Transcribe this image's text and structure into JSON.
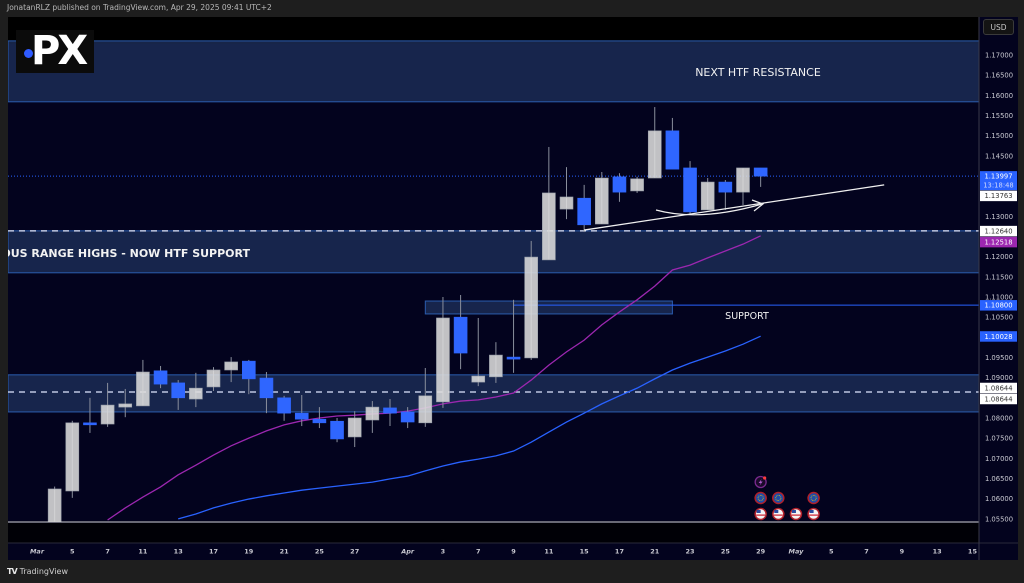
{
  "header": {
    "published": "JonatanRLZ published on TradingView.com, Apr 29, 2025 09:41 UTC+2"
  },
  "logo": {
    "text": "PX"
  },
  "currency_button": "USD",
  "footer": {
    "brand": "TradingView",
    "brand_icon": "tradingview-logo-icon"
  },
  "colors": {
    "background": "#03031e",
    "zone": "#1b2b55",
    "zone_border": "#2a5cae",
    "up_candle": "#dcdcdc",
    "down_candle": "#2f66ff",
    "ma_fast": "#9c27b0",
    "ma_slow": "#2962ff"
  },
  "chart_data": {
    "type": "candlestick",
    "title": "",
    "price_ticks": [
      "1.17000",
      "1.16500",
      "1.16000",
      "1.15500",
      "1.15000",
      "1.14500",
      "1.14000",
      "1.13500",
      "1.13000",
      "1.12500",
      "1.12000",
      "1.11500",
      "1.11000",
      "1.10500",
      "1.10000",
      "1.09500",
      "1.09000",
      "1.08500",
      "1.08000",
      "1.07500",
      "1.07000",
      "1.06500",
      "1.06000",
      "1.05500"
    ],
    "hidden_price_ticks": [
      "1.14000",
      "1.13500",
      "1.12500",
      "1.10000",
      "1.08500"
    ],
    "x_ticks": [
      {
        "label": "Mar",
        "date": "2025-03-03"
      },
      {
        "label": "5",
        "date": "2025-03-05"
      },
      {
        "label": "7",
        "date": "2025-03-07"
      },
      {
        "label": "11",
        "date": "2025-03-11"
      },
      {
        "label": "13",
        "date": "2025-03-13"
      },
      {
        "label": "17",
        "date": "2025-03-17"
      },
      {
        "label": "19",
        "date": "2025-03-19"
      },
      {
        "label": "21",
        "date": "2025-03-21"
      },
      {
        "label": "25",
        "date": "2025-03-25"
      },
      {
        "label": "27",
        "date": "2025-03-27"
      },
      {
        "label": "Apr",
        "date": "2025-04-01"
      },
      {
        "label": "3",
        "date": "2025-04-03"
      },
      {
        "label": "7",
        "date": "2025-04-07"
      },
      {
        "label": "9",
        "date": "2025-04-09"
      },
      {
        "label": "11",
        "date": "2025-04-11"
      },
      {
        "label": "15",
        "date": "2025-04-15"
      },
      {
        "label": "17",
        "date": "2025-04-17"
      },
      {
        "label": "21",
        "date": "2025-04-21"
      },
      {
        "label": "23",
        "date": "2025-04-23"
      },
      {
        "label": "25",
        "date": "2025-04-25"
      },
      {
        "label": "29",
        "date": "2025-04-29"
      },
      {
        "label": "May",
        "date": "2025-05-01"
      },
      {
        "label": "5",
        "date": "2025-05-05"
      },
      {
        "label": "7",
        "date": "2025-05-07"
      },
      {
        "label": "9",
        "date": "2025-05-09"
      },
      {
        "label": "13",
        "date": "2025-05-13"
      },
      {
        "label": "15",
        "date": "2025-05-15"
      }
    ],
    "candles": [
      [
        "2025-03-04",
        1.0485,
        1.063,
        1.047,
        1.0624
      ],
      [
        "2025-03-05",
        1.0619,
        1.0793,
        1.0602,
        1.0788
      ],
      [
        "2025-03-06",
        1.0788,
        1.085,
        1.0763,
        1.0784
      ],
      [
        "2025-03-07",
        1.0785,
        1.0887,
        1.0778,
        1.0832
      ],
      [
        "2025-03-10",
        1.0827,
        1.0872,
        1.0802,
        1.0835
      ],
      [
        "2025-03-11",
        1.083,
        1.0944,
        1.083,
        1.0914
      ],
      [
        "2025-03-12",
        1.0917,
        1.0929,
        1.0874,
        1.0884
      ],
      [
        "2025-03-13",
        1.0887,
        1.0894,
        1.082,
        1.085
      ],
      [
        "2025-03-14",
        1.0847,
        1.0912,
        1.0827,
        1.0874
      ],
      [
        "2025-03-17",
        1.0877,
        1.0926,
        1.0867,
        1.0919
      ],
      [
        "2025-03-18",
        1.0919,
        1.0951,
        1.0889,
        1.0939
      ],
      [
        "2025-03-19",
        1.0941,
        1.0944,
        1.0859,
        1.0897
      ],
      [
        "2025-03-20",
        1.0899,
        1.0914,
        1.0812,
        1.085
      ],
      [
        "2025-03-21",
        1.085,
        1.0855,
        1.0793,
        1.0812
      ],
      [
        "2025-03-24",
        1.0812,
        1.0857,
        1.078,
        1.0797
      ],
      [
        "2025-03-25",
        1.0797,
        1.0827,
        1.0775,
        1.0788
      ],
      [
        "2025-03-26",
        1.0792,
        1.08,
        1.074,
        1.0748
      ],
      [
        "2025-03-27",
        1.0753,
        1.0817,
        1.0728,
        1.08
      ],
      [
        "2025-03-28",
        1.0795,
        1.0842,
        1.0763,
        1.0827
      ],
      [
        "2025-03-31",
        1.0825,
        1.0847,
        1.078,
        1.0812
      ],
      [
        "2025-04-01",
        1.0815,
        1.0827,
        1.0775,
        1.079
      ],
      [
        "2025-04-02",
        1.0788,
        1.0924,
        1.0778,
        1.0855
      ],
      [
        "2025-04-03",
        1.084,
        1.11,
        1.0825,
        1.1048
      ],
      [
        "2025-04-04",
        1.105,
        1.1105,
        1.0921,
        1.0961
      ],
      [
        "2025-04-07",
        1.0889,
        1.1048,
        1.0879,
        1.0904
      ],
      [
        "2025-04-08",
        1.0902,
        1.0988,
        1.0887,
        1.0956
      ],
      [
        "2025-04-09",
        1.0951,
        1.1093,
        1.0912,
        1.0946
      ],
      [
        "2025-04-10",
        1.0949,
        1.1239,
        1.0944,
        1.1199
      ],
      [
        "2025-04-11",
        1.1192,
        1.1472,
        1.1192,
        1.1358
      ],
      [
        "2025-04-14",
        1.1318,
        1.1422,
        1.1293,
        1.1348
      ],
      [
        "2025-04-15",
        1.1345,
        1.1378,
        1.1261,
        1.1279
      ],
      [
        "2025-04-16",
        1.1281,
        1.141,
        1.1281,
        1.1395
      ],
      [
        "2025-04-17",
        1.1398,
        1.1407,
        1.1336,
        1.136
      ],
      [
        "2025-04-18",
        1.1363,
        1.1398,
        1.1358,
        1.1393
      ],
      [
        "2025-04-21",
        1.1395,
        1.1571,
        1.1395,
        1.1512
      ],
      [
        "2025-04-22",
        1.1512,
        1.1544,
        1.1417,
        1.1417
      ],
      [
        "2025-04-23",
        1.142,
        1.1437,
        1.1306,
        1.1311
      ],
      [
        "2025-04-24",
        1.1316,
        1.1395,
        1.1316,
        1.1385
      ],
      [
        "2025-04-25",
        1.1385,
        1.139,
        1.1316,
        1.136
      ],
      [
        "2025-04-28",
        1.136,
        1.142,
        1.1328,
        1.142
      ],
      [
        "2025-04-29",
        1.142,
        1.142,
        1.1373,
        1.13997
      ]
    ],
    "moving_averages": [
      {
        "color": "#9c27b0",
        "points": [
          [
            "2025-03-07",
            1.0547
          ],
          [
            "2025-03-10",
            1.0577
          ],
          [
            "2025-03-11",
            1.0604
          ],
          [
            "2025-03-12",
            1.0629
          ],
          [
            "2025-03-13",
            1.0659
          ],
          [
            "2025-03-14",
            1.0683
          ],
          [
            "2025-03-17",
            1.0708
          ],
          [
            "2025-03-18",
            1.0731
          ],
          [
            "2025-03-19",
            1.075
          ],
          [
            "2025-03-20",
            1.0768
          ],
          [
            "2025-03-21",
            1.0783
          ],
          [
            "2025-03-24",
            1.0793
          ],
          [
            "2025-03-25",
            1.08
          ],
          [
            "2025-03-26",
            1.0805
          ],
          [
            "2025-03-27",
            1.0807
          ],
          [
            "2025-03-28",
            1.081
          ],
          [
            "2025-03-31",
            1.0812
          ],
          [
            "2025-04-01",
            1.0817
          ],
          [
            "2025-04-02",
            1.0825
          ],
          [
            "2025-04-03",
            1.0835
          ],
          [
            "2025-04-04",
            1.0842
          ],
          [
            "2025-04-07",
            1.0845
          ],
          [
            "2025-04-08",
            1.0852
          ],
          [
            "2025-04-09",
            1.0862
          ],
          [
            "2025-04-10",
            1.0894
          ],
          [
            "2025-04-11",
            1.0931
          ],
          [
            "2025-04-14",
            1.0964
          ],
          [
            "2025-04-15",
            1.0993
          ],
          [
            "2025-04-16",
            1.1031
          ],
          [
            "2025-04-17",
            1.1063
          ],
          [
            "2025-04-18",
            1.1093
          ],
          [
            "2025-04-21",
            1.1127
          ],
          [
            "2025-04-22",
            1.1167
          ],
          [
            "2025-04-23",
            1.1179
          ],
          [
            "2025-04-24",
            1.1197
          ],
          [
            "2025-04-25",
            1.1214
          ],
          [
            "2025-04-28",
            1.1231
          ],
          [
            "2025-04-29",
            1.12518
          ]
        ]
      },
      {
        "color": "#2962ff",
        "points": [
          [
            "2025-03-13",
            1.055
          ],
          [
            "2025-03-14",
            1.0562
          ],
          [
            "2025-03-17",
            1.0577
          ],
          [
            "2025-03-18",
            1.0589
          ],
          [
            "2025-03-19",
            1.0599
          ],
          [
            "2025-03-20",
            1.0607
          ],
          [
            "2025-03-21",
            1.0614
          ],
          [
            "2025-03-24",
            1.0621
          ],
          [
            "2025-03-25",
            1.0626
          ],
          [
            "2025-03-26",
            1.0631
          ],
          [
            "2025-03-27",
            1.0636
          ],
          [
            "2025-03-28",
            1.0641
          ],
          [
            "2025-03-31",
            1.0649
          ],
          [
            "2025-04-01",
            1.0656
          ],
          [
            "2025-04-02",
            1.0669
          ],
          [
            "2025-04-03",
            1.0681
          ],
          [
            "2025-04-04",
            1.0691
          ],
          [
            "2025-04-07",
            1.0698
          ],
          [
            "2025-04-08",
            1.0706
          ],
          [
            "2025-04-09",
            1.0718
          ],
          [
            "2025-04-10",
            1.074
          ],
          [
            "2025-04-11",
            1.0765
          ],
          [
            "2025-04-14",
            1.079
          ],
          [
            "2025-04-15",
            1.0812
          ],
          [
            "2025-04-16",
            1.0835
          ],
          [
            "2025-04-17",
            1.0855
          ],
          [
            "2025-04-18",
            1.0874
          ],
          [
            "2025-04-21",
            1.0897
          ],
          [
            "2025-04-22",
            1.0919
          ],
          [
            "2025-04-23",
            1.0936
          ],
          [
            "2025-04-24",
            1.0951
          ],
          [
            "2025-04-25",
            1.0966
          ],
          [
            "2025-04-28",
            1.0983
          ],
          [
            "2025-04-29",
            1.10028
          ]
        ]
      }
    ],
    "zones": [
      {
        "label": "NEXT HTF RESISTANCE",
        "top": 1.1735,
        "bottom": 1.1584
      },
      {
        "label": "PREVIOUS RANGE HIGHS - NOW HTF SUPPORT",
        "top": 1.1264,
        "bottom": 1.116
      },
      {
        "label": "",
        "top": 1.0907,
        "bottom": 1.0815
      },
      {
        "label": "SUPPORT",
        "top": 1.109,
        "bottom": 1.1058,
        "from": "2025-04-02",
        "to": "2025-04-22"
      }
    ],
    "levels": [
      {
        "price": 1.1264,
        "style": "dashed"
      },
      {
        "price": 1.08644,
        "style": "dashed"
      },
      {
        "price": 1.108,
        "style": "solid",
        "from": "2025-04-09"
      },
      {
        "price": 1.13997,
        "style": "dotted"
      }
    ],
    "trendline": {
      "from": [
        "2025-04-15",
        1.1266
      ],
      "to": [
        "2025-05-08",
        1.1378
      ]
    },
    "price_badges": [
      {
        "text": "1.13997",
        "sub": "13:18:48",
        "price": 1.13997,
        "bg": "#2962ff",
        "fg": "#ffffff"
      },
      {
        "text": "1.13763",
        "price": 1.13763,
        "bg": "#ffffff",
        "fg": "#333333"
      },
      {
        "text": "1.12640",
        "price": 1.1264,
        "bg": "#ffffff",
        "fg": "#333333"
      },
      {
        "text": "1.12518",
        "price": 1.12518,
        "bg": "#9c27b0",
        "fg": "#ffffff"
      },
      {
        "text": "1.10800",
        "price": 1.108,
        "bg": "#2962ff",
        "fg": "#ffffff"
      },
      {
        "text": "1.10028",
        "price": 1.10028,
        "bg": "#2962ff",
        "fg": "#ffffff"
      },
      {
        "text": "1.08644",
        "price": 1.0875,
        "bg": "#ffffff",
        "fg": "#333333"
      },
      {
        "text": "1.08644",
        "price": 1.0852,
        "bg": "#ffffff",
        "fg": "#333333"
      }
    ],
    "events": [
      {
        "type": "lightning-icon",
        "date": "2025-04-29",
        "row": 0
      },
      {
        "type": "eu-flag-icon",
        "date": "2025-04-29",
        "row": 1
      },
      {
        "type": "eu-flag-icon",
        "date": "2025-04-30",
        "row": 1
      },
      {
        "type": "eu-flag-icon",
        "date": "2025-05-02",
        "row": 1
      },
      {
        "type": "us-flag-icon",
        "date": "2025-04-29",
        "row": 2
      },
      {
        "type": "us-flag-icon",
        "date": "2025-04-30",
        "row": 2
      },
      {
        "type": "us-flag-icon",
        "date": "2025-05-01",
        "row": 2
      },
      {
        "type": "us-flag-icon",
        "date": "2025-05-02",
        "row": 2
      }
    ]
  }
}
